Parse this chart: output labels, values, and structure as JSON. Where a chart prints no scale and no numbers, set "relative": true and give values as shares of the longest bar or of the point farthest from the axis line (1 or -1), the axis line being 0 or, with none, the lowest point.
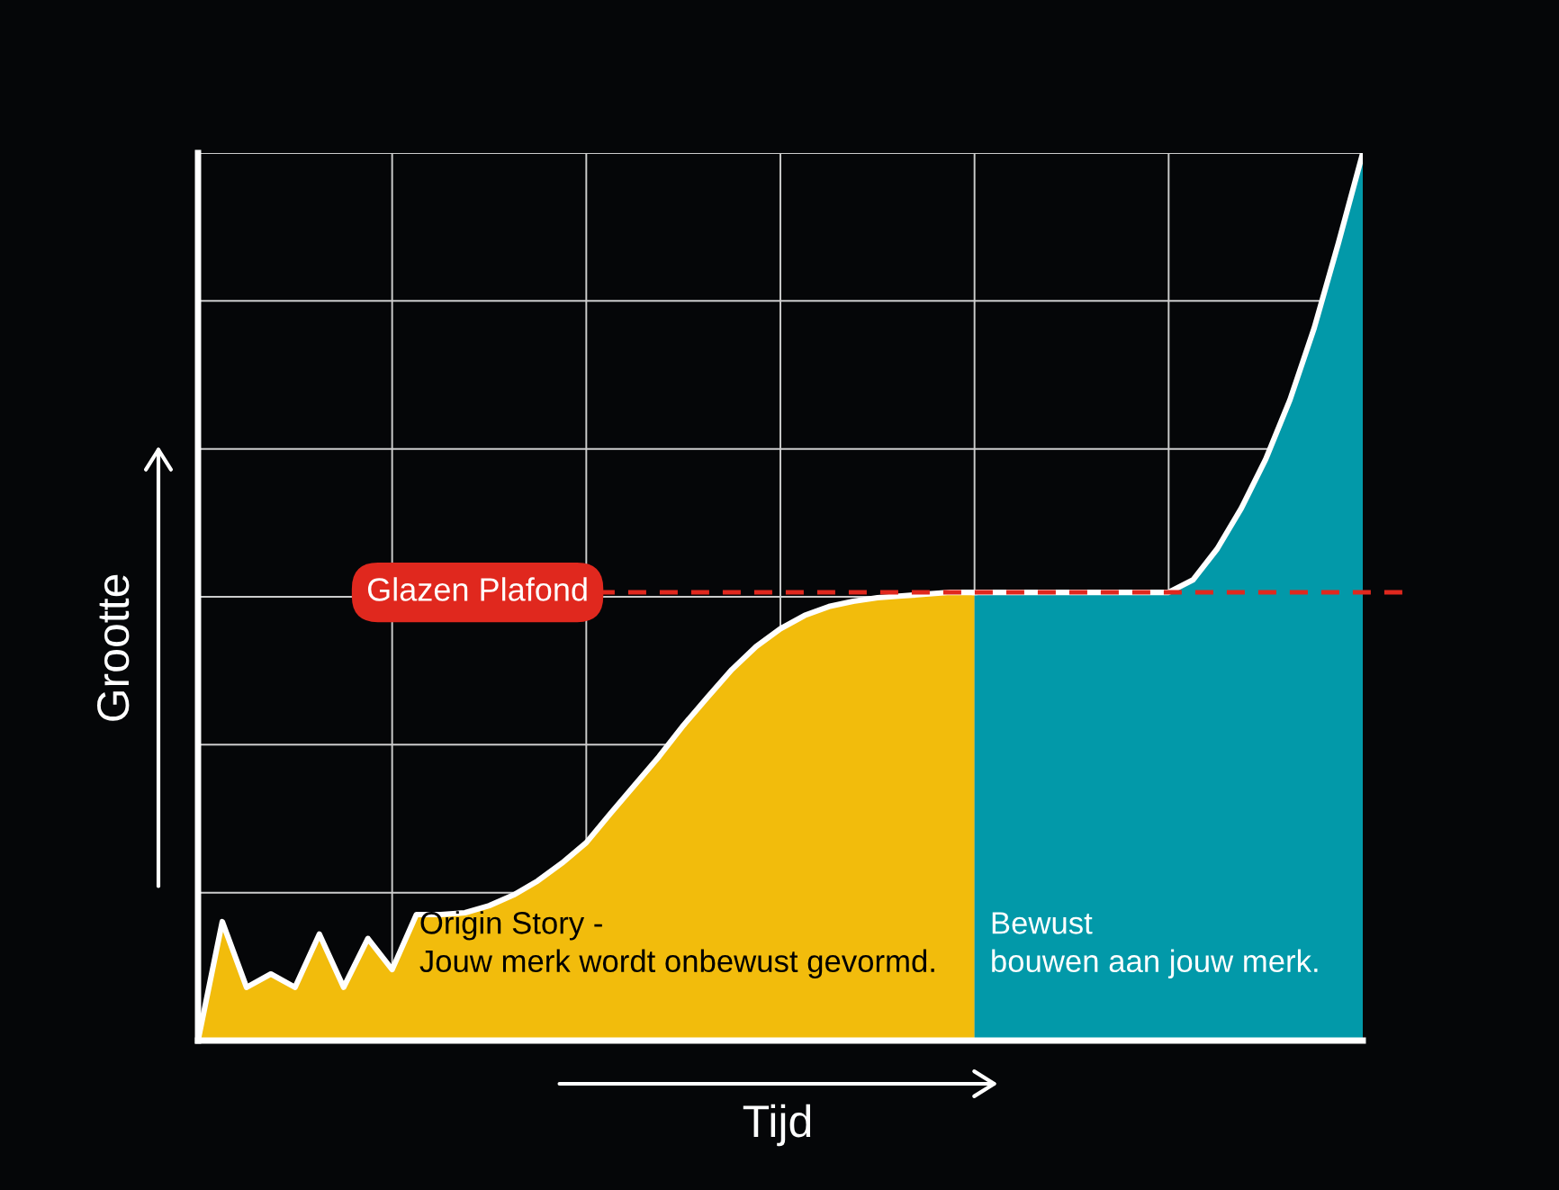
{
  "chart_data": {
    "type": "area",
    "relative": true,
    "xlabel": "Tijd",
    "ylabel": "Grootte",
    "grid": true,
    "legend": false,
    "categories": [
      null,
      null,
      null,
      null,
      null,
      null,
      null,
      null,
      null,
      null,
      null,
      null,
      null,
      null,
      null,
      null,
      null,
      null,
      null,
      null,
      null,
      null,
      null,
      null,
      null,
      null,
      null,
      null,
      null,
      null,
      null,
      null,
      null,
      null,
      null,
      null,
      null,
      null,
      null,
      null,
      null,
      null,
      null,
      null,
      null,
      null,
      null,
      null,
      null
    ],
    "series": [
      {
        "color": "#f2bc0c",
        "values": [
          0,
          0.134,
          0.06,
          0.075,
          0.06,
          0.12,
          0.06,
          0.115,
          0.08,
          0.142,
          0.142,
          0.144,
          0.152,
          0.164,
          0.18,
          0.2,
          0.223,
          0.256,
          0.288,
          0.32,
          0.355,
          0.387,
          0.418,
          0.444,
          0.464,
          0.479,
          0.489,
          0.495,
          0.499,
          0.501,
          0.503,
          0.505,
          0.505,
          null,
          null,
          null,
          null,
          null,
          null,
          null,
          null,
          null,
          null,
          null,
          null,
          null,
          null,
          null,
          null
        ]
      },
      {
        "color": "#0299a9",
        "values": [
          null,
          null,
          null,
          null,
          null,
          null,
          null,
          null,
          null,
          null,
          null,
          null,
          null,
          null,
          null,
          null,
          null,
          null,
          null,
          null,
          null,
          null,
          null,
          null,
          null,
          null,
          null,
          null,
          null,
          null,
          null,
          null,
          0.505,
          0.505,
          0.505,
          0.505,
          0.505,
          0.505,
          0.505,
          0.505,
          0.505,
          0.519,
          0.554,
          0.6,
          0.655,
          0.722,
          0.803,
          0.899,
          1
        ]
      }
    ],
    "ref_lines": [
      {
        "axis": "y",
        "value": 0.505,
        "label": "Glazen Plafond",
        "color": "#e0281e",
        "line_style": "dashed"
      }
    ],
    "annotations": [
      "Origin Story -\nJouw merk wordt onbewust gevormd.",
      "Bewust\nbouwen aan jouw merk."
    ]
  }
}
